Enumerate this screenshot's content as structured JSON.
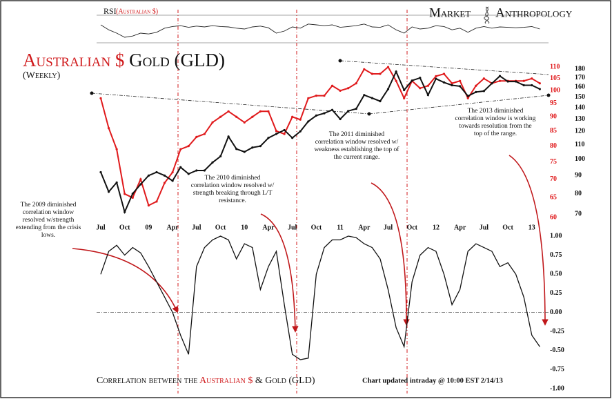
{
  "logo": [
    "Market",
    "Anthropology"
  ],
  "chart_data": [
    {
      "type": "line",
      "title": "RSI",
      "subtitle": "(Australian $)",
      "color": "#222222",
      "ylim": [
        20,
        80
      ],
      "values": [
        60,
        48,
        40,
        30,
        33,
        40,
        38,
        42,
        52,
        56,
        58,
        54,
        57,
        55,
        58,
        56,
        55,
        52,
        50,
        55,
        57,
        53,
        40,
        45,
        55,
        52,
        62,
        60,
        58,
        60,
        54,
        56,
        58,
        62,
        55,
        54,
        60,
        48,
        40,
        55,
        50,
        52,
        58,
        56,
        48,
        52,
        42,
        52,
        56,
        52,
        55,
        54,
        53,
        54,
        56,
        50
      ]
    },
    {
      "type": "line",
      "title": [
        "Australian $",
        "Gold (GLD)"
      ],
      "subtitle": "(Weekly)",
      "log": true,
      "categories": [
        "Jul",
        null,
        null,
        "Oct",
        null,
        null,
        "09",
        null,
        null,
        "Apr",
        null,
        null,
        "Jul",
        null,
        null,
        "Oct",
        null,
        null,
        "10",
        null,
        null,
        "Apr",
        null,
        null,
        "Jul",
        null,
        null,
        "Oct",
        null,
        null,
        "11",
        null,
        null,
        "Apr",
        null,
        null,
        "Jul",
        null,
        null,
        "Oct",
        null,
        null,
        "12",
        null,
        null,
        "Apr",
        null,
        null,
        "Jul",
        null,
        null,
        "Oct",
        null,
        null,
        "13",
        null
      ],
      "ylim": [
        67,
        190
      ],
      "yticks": [
        70,
        80,
        90,
        100,
        110,
        120,
        130,
        140,
        150,
        160,
        170,
        180
      ],
      "y2lim": [
        59.2,
        112.8
      ],
      "y2ticks": [
        60,
        65,
        70,
        75,
        80,
        85,
        90,
        95,
        100,
        105,
        110
      ],
      "series": [
        {
          "name": "Australian $",
          "color": "#e0191b",
          "axis": "y2",
          "values": [
            97,
            86,
            79,
            66,
            65,
            70,
            63,
            64,
            69,
            72,
            79,
            80,
            83,
            84,
            88,
            90,
            92,
            90,
            88,
            90,
            92,
            92,
            85,
            84,
            90,
            89,
            97,
            98,
            98,
            102,
            100,
            101,
            103,
            109,
            107,
            107,
            110,
            104,
            97,
            104,
            101,
            102,
            106,
            107,
            103,
            104,
            97,
            102,
            105,
            103,
            104,
            104,
            104,
            104,
            105,
            103
          ]
        },
        {
          "name": "Gold (GLD)",
          "color": "#111111",
          "values": [
            92,
            81,
            86,
            71,
            80,
            85,
            90,
            92,
            90,
            87,
            95,
            91,
            93,
            93,
            98,
            102,
            116,
            107,
            105,
            108,
            109,
            115,
            118,
            121,
            115,
            120,
            128,
            133,
            135,
            138,
            130,
            137,
            139,
            152,
            149,
            146,
            158,
            177,
            157,
            167,
            170,
            152,
            169,
            165,
            162,
            161,
            151,
            155,
            156,
            164,
            172,
            166,
            166,
            162,
            162,
            158
          ]
        }
      ]
    },
    {
      "type": "line",
      "color": "#111111",
      "ylim": [
        -1,
        1
      ],
      "yticks": [
        {
          "value": 1,
          "label": "1.00"
        },
        {
          "value": 0.75,
          "label": "0.75"
        },
        {
          "value": 0.5,
          "label": "0.50"
        },
        {
          "value": 0.25,
          "label": "0.25"
        },
        {
          "value": 0,
          "label": "0.00"
        },
        {
          "value": -0.25,
          "label": "-0.25"
        },
        {
          "value": -0.5,
          "label": "-0.50"
        },
        {
          "value": -0.75,
          "label": "-0.75"
        },
        {
          "value": -1,
          "label": "-1.00"
        }
      ],
      "values": [
        0.5,
        0.8,
        0.88,
        0.75,
        0.85,
        0.78,
        0.6,
        0.4,
        0.2,
        0.0,
        -0.3,
        -0.55,
        0.6,
        0.85,
        0.95,
        1.0,
        0.95,
        0.7,
        0.9,
        0.85,
        0.3,
        0.6,
        0.8,
        0.1,
        -0.55,
        -0.62,
        -0.6,
        0.5,
        0.85,
        0.95,
        0.95,
        1.0,
        0.98,
        0.9,
        0.85,
        0.7,
        0.3,
        -0.2,
        -0.45,
        0.4,
        0.75,
        0.85,
        0.8,
        0.5,
        0.1,
        0.3,
        0.8,
        0.9,
        0.85,
        0.8,
        0.6,
        0.65,
        0.5,
        0.2,
        -0.3,
        -0.45
      ]
    }
  ],
  "annotations": [
    [
      "The 2009 diminished",
      "correlation window",
      "resolved w/strength",
      "extending from the crisis",
      "lows."
    ],
    [
      "The 2010 diminished",
      "correlation window resolved w/",
      "strength breaking through L/T",
      "resistance."
    ],
    [
      "The 2011 diminished",
      "correlation window resolved w/",
      "weakness establishing the top of",
      "the current range."
    ],
    [
      "The 2013 diminished",
      "correlation window is working",
      "towards resolution from the",
      "top of the range."
    ]
  ],
  "footer": {
    "caption": [
      "Correlation between the",
      "Australian $",
      "& Gold (GLD)"
    ],
    "updated": "Chart updated intraday @ 10:00 EST 2/14/13"
  }
}
